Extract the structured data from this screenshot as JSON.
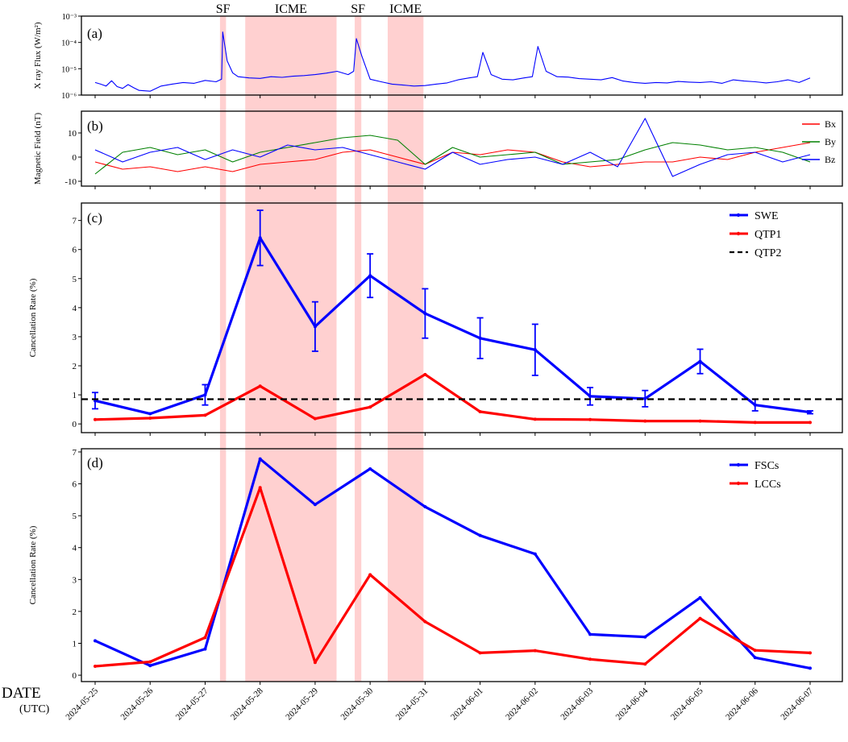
{
  "dates": [
    "2024-05-25",
    "2024-05-26",
    "2024-05-27",
    "2024-05-28",
    "2024-05-29",
    "2024-05-30",
    "2024-05-31",
    "2024-06-01",
    "2024-06-02",
    "2024-06-03",
    "2024-06-04",
    "2024-06-05",
    "2024-06-06",
    "2024-06-07"
  ],
  "x_axis_title": "DATE",
  "x_axis_subtitle": "(UTC)",
  "events": [
    {
      "label": "SF",
      "start": 2.27,
      "end": 2.38
    },
    {
      "label": "ICME",
      "start": 2.73,
      "end": 4.39
    },
    {
      "label": "SF",
      "start": 4.72,
      "end": 4.84
    },
    {
      "label": "ICME",
      "start": 5.32,
      "end": 5.97
    }
  ],
  "colors": {
    "blue": "#0000ff",
    "red": "#ff0000",
    "green": "#008000",
    "black": "#000000",
    "shade": "#ffc0c0"
  },
  "chart_data": [
    {
      "panel": "(a)",
      "type": "line",
      "ylabel": "X ray Flux (W/m²)",
      "yscale": "log",
      "ylim": [
        1e-06,
        0.001
      ],
      "yticks": [
        "10⁻⁶",
        "10⁻⁵",
        "10⁻⁴",
        "10⁻³"
      ],
      "series": [
        {
          "name": "X ray Flux",
          "x": [
            0,
            0.1,
            0.2,
            0.3,
            0.4,
            0.5,
            0.6,
            0.7,
            0.8,
            1.0,
            1.2,
            1.4,
            1.6,
            1.8,
            2.0,
            2.2,
            2.3,
            2.32,
            2.4,
            2.5,
            2.6,
            2.8,
            3.0,
            3.2,
            3.4,
            3.6,
            3.8,
            4.0,
            4.2,
            4.4,
            4.6,
            4.7,
            4.75,
            4.85,
            5.0,
            5.2,
            5.4,
            5.6,
            5.8,
            6.0,
            6.2,
            6.4,
            6.6,
            6.8,
            6.95,
            7.05,
            7.2,
            7.4,
            7.6,
            7.8,
            7.95,
            8.05,
            8.2,
            8.4,
            8.6,
            8.8,
            9.0,
            9.2,
            9.4,
            9.6,
            9.8,
            10.0,
            10.2,
            10.4,
            10.6,
            10.8,
            11.0,
            11.2,
            11.4,
            11.6,
            11.8,
            12.0,
            12.2,
            12.4,
            12.6,
            12.8,
            13.0
          ],
          "values": [
            3e-06,
            2.6e-06,
            2.2e-06,
            3.5e-06,
            2.1e-06,
            1.8e-06,
            2.5e-06,
            1.9e-06,
            1.5e-06,
            1.4e-06,
            2.2e-06,
            2.6e-06,
            3e-06,
            2.8e-06,
            3.6e-06,
            3.2e-06,
            4e-06,
            0.00025,
            2e-05,
            7e-06,
            5e-06,
            4.5e-06,
            4.3e-06,
            5e-06,
            4.7e-06,
            5.2e-06,
            5.5e-06,
            6e-06,
            6.8e-06,
            8e-06,
            6e-06,
            8e-06,
            0.00014,
            3e-05,
            4e-06,
            3.2e-06,
            2.6e-06,
            2.4e-06,
            2.2e-06,
            2.3e-06,
            2.6e-06,
            2.9e-06,
            3.8e-06,
            4.5e-06,
            5e-06,
            4.2e-05,
            6e-06,
            4e-06,
            3.8e-06,
            4.5e-06,
            5e-06,
            7e-05,
            8e-06,
            5e-06,
            4.8e-06,
            4.2e-06,
            4e-06,
            3.8e-06,
            4.6e-06,
            3.4e-06,
            3e-06,
            2.8e-06,
            3e-06,
            2.9e-06,
            3.3e-06,
            3.1e-06,
            3e-06,
            3.2e-06,
            2.8e-06,
            3.8e-06,
            3.4e-06,
            3.2e-06,
            2.9e-06,
            3.2e-06,
            3.8e-06,
            3e-06,
            4.5e-06
          ]
        }
      ]
    },
    {
      "panel": "(b)",
      "type": "line",
      "ylabel": "Magnetic Field (nT)",
      "ylim": [
        -12,
        19
      ],
      "yticks": [
        -10,
        0,
        10
      ],
      "legend": [
        "Bx",
        "By",
        "Bz"
      ],
      "series": [
        {
          "name": "Bx",
          "x": [
            0,
            0.5,
            1.0,
            1.5,
            2.0,
            2.5,
            3.0,
            3.5,
            4.0,
            4.5,
            5.0,
            5.5,
            6.0,
            6.5,
            7.0,
            7.5,
            8.0,
            8.5,
            9.0,
            9.5,
            10.0,
            10.5,
            11.0,
            11.5,
            12.0,
            12.5,
            13.0
          ],
          "values": [
            -2,
            -5,
            -4,
            -6,
            -4,
            -6,
            -3,
            -2,
            -1,
            2,
            3,
            0,
            -3,
            2,
            1,
            3,
            2,
            -2,
            -4,
            -3,
            -2,
            -2,
            0,
            -1,
            2,
            4,
            6
          ]
        },
        {
          "name": "By",
          "x": [
            0,
            0.5,
            1.0,
            1.5,
            2.0,
            2.5,
            3.0,
            3.5,
            4.0,
            4.5,
            5.0,
            5.5,
            6.0,
            6.5,
            7.0,
            7.5,
            8.0,
            8.5,
            9.0,
            9.5,
            10.0,
            10.5,
            11.0,
            11.5,
            12.0,
            12.5,
            13.0
          ],
          "values": [
            -7,
            2,
            4,
            1,
            3,
            -2,
            2,
            4,
            6,
            8,
            9,
            7,
            -3,
            4,
            0,
            1,
            2,
            -3,
            -2,
            -1,
            3,
            6,
            5,
            3,
            4,
            2,
            -2
          ]
        },
        {
          "name": "Bz",
          "x": [
            0,
            0.5,
            1.0,
            1.5,
            2.0,
            2.5,
            3.0,
            3.5,
            4.0,
            4.5,
            5.0,
            5.5,
            6.0,
            6.5,
            7.0,
            7.5,
            8.0,
            8.5,
            9.0,
            9.5,
            10.0,
            10.5,
            11.0,
            11.5,
            12.0,
            12.5,
            13.0
          ],
          "values": [
            3,
            -2,
            2,
            4,
            -1,
            3,
            0,
            5,
            3,
            4,
            1,
            -2,
            -5,
            2,
            -3,
            -1,
            0,
            -3,
            2,
            -4,
            16,
            -8,
            -3,
            1,
            2,
            -2,
            1
          ]
        }
      ]
    },
    {
      "panel": "(c)",
      "type": "line",
      "ylabel": "Cancellation Rate (%)",
      "ylim": [
        -0.3,
        7.6
      ],
      "yticks": [
        0,
        1,
        2,
        3,
        4,
        5,
        6,
        7
      ],
      "series": [
        {
          "name": "SWE",
          "values": [
            0.8,
            0.35,
            1.0,
            6.4,
            3.35,
            5.1,
            3.8,
            2.95,
            2.55,
            0.95,
            0.87,
            2.15,
            0.65,
            0.4
          ],
          "errors": [
            0.28,
            0,
            0.35,
            0.95,
            0.85,
            0.75,
            0.85,
            0.7,
            0.88,
            0.3,
            0.28,
            0.42,
            0.2,
            0.05
          ]
        },
        {
          "name": "QTP1",
          "values": [
            0.15,
            0.2,
            0.3,
            1.3,
            0.18,
            0.58,
            1.7,
            0.42,
            0.16,
            0.15,
            0.1,
            0.1,
            0.05,
            0.05
          ]
        },
        {
          "name": "QTP2",
          "constant": 0.85
        }
      ]
    },
    {
      "panel": "(d)",
      "type": "line",
      "ylabel": "Cancellation Rate (%)",
      "ylim": [
        -0.2,
        7.1
      ],
      "yticks": [
        0,
        1,
        2,
        3,
        4,
        5,
        6,
        7
      ],
      "series": [
        {
          "name": "FSCs",
          "values": [
            1.08,
            0.3,
            0.82,
            6.78,
            5.35,
            6.47,
            5.28,
            4.38,
            3.8,
            1.28,
            1.2,
            2.43,
            0.55,
            0.22
          ]
        },
        {
          "name": "LCCs",
          "values": [
            0.28,
            0.42,
            1.18,
            5.88,
            0.4,
            3.15,
            1.68,
            0.7,
            0.77,
            0.5,
            0.35,
            1.78,
            0.78,
            0.7
          ]
        }
      ]
    }
  ]
}
